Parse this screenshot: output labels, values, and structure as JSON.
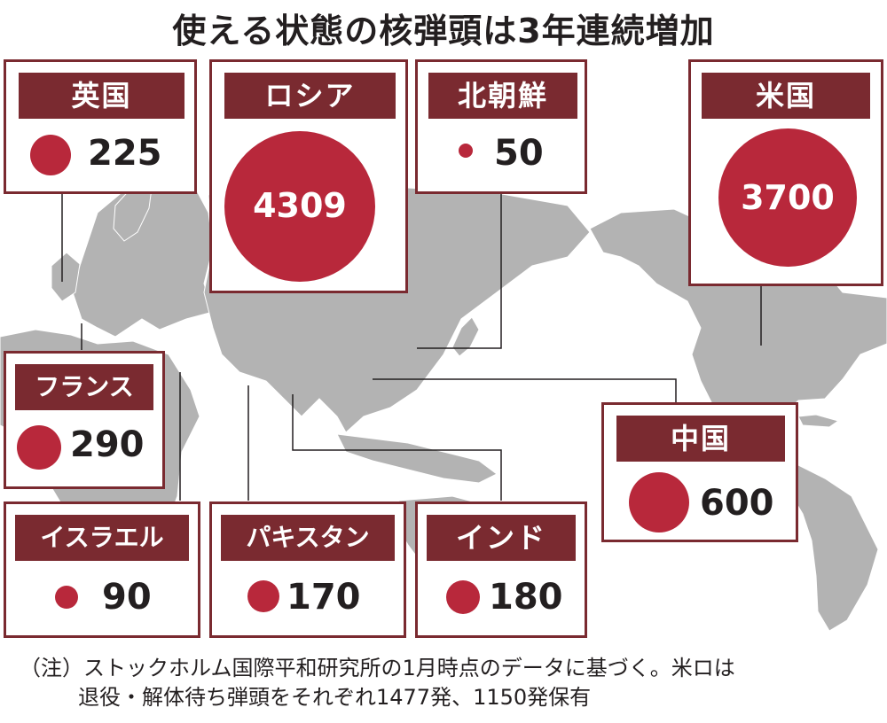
{
  "title": "使える状態の核弾頭は3年連続増加",
  "colors": {
    "header": "#7a2a30",
    "circle": "#b8283b",
    "map": "#b3b3b3"
  },
  "chart_data": {
    "type": "bubble-map",
    "title": "使える状態の核弾頭は3年連続増加",
    "categories": [
      "英国",
      "ロシア",
      "北朝鮮",
      "米国",
      "フランス",
      "中国",
      "イスラエル",
      "パキスタン",
      "インド"
    ],
    "values": [
      225,
      4309,
      50,
      3700,
      290,
      600,
      90,
      170,
      180
    ],
    "value_labels": [
      "225",
      "4309",
      "50",
      "3700",
      "290",
      "600",
      "90",
      "170",
      "180"
    ]
  },
  "note": {
    "line1": "（注）ストックホルム国際平和研究所の1月時点のデータに基づく。米ロは",
    "line2": "退役・解体待ち弾頭をそれぞれ1477発、1150発保有"
  }
}
